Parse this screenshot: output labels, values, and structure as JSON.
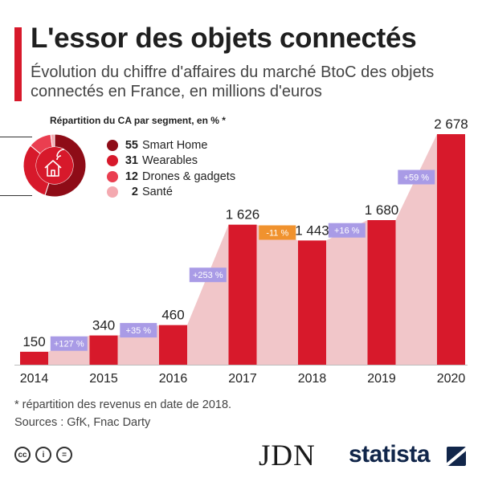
{
  "header": {
    "title": "L'essor des objets connectés",
    "subtitle": "Évolution du chiffre d'affaires du marché BtoC des objets connectés en France, en millions d'euros"
  },
  "chart_data": {
    "type": "bar",
    "categories": [
      "2014",
      "2015",
      "2016",
      "2017",
      "2018",
      "2019",
      "2020"
    ],
    "values": [
      150,
      340,
      460,
      1626,
      1443,
      1680,
      2678
    ],
    "value_labels": [
      "150",
      "340",
      "460",
      "1 626",
      "1 443",
      "1 680",
      "2 678"
    ],
    "growth_labels": [
      "+127 %",
      "+35 %",
      "+253 %",
      "-11 %",
      "+16 %",
      "+59 %"
    ],
    "growth_colors": [
      "#a99be6",
      "#a99be6",
      "#a99be6",
      "#f0922e",
      "#a99be6",
      "#a99be6"
    ],
    "ylim": [
      0,
      2678
    ],
    "bar_color": "#d7192b",
    "area_color": "#f1c6c9",
    "grid": false
  },
  "pie": {
    "title": "Répartition du CA par segment, en % *",
    "icon": "smart-home-icon",
    "segments": [
      {
        "value": 55,
        "value_label": "55",
        "label": "Smart Home",
        "color": "#8e0c17"
      },
      {
        "value": 31,
        "value_label": "31",
        "label": "Wearables",
        "color": "#d7192b"
      },
      {
        "value": 12,
        "value_label": "12",
        "label": "Drones & gadgets",
        "color": "#ea3e50"
      },
      {
        "value": 2,
        "value_label": "2",
        "label": "Santé",
        "color": "#f4a9b0"
      }
    ]
  },
  "footer": {
    "footnote": "* répartition des revenus en date de 2018.",
    "sources": "Sources : GfK, Fnac Darty",
    "cc_labels": [
      "cc",
      "i",
      "="
    ],
    "partner": "JDN",
    "brand": "statista"
  }
}
